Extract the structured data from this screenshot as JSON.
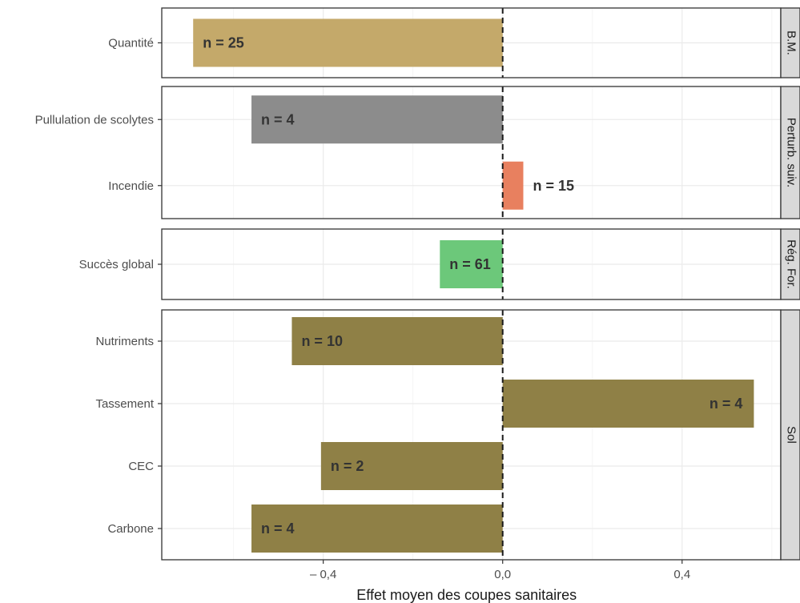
{
  "chart_data": {
    "type": "bar",
    "orientation": "horizontal",
    "xlabel": "Effet moyen des coupes sanitaires",
    "xlim": [
      -0.76,
      0.62
    ],
    "x_ticks": [
      -0.4,
      0.0,
      0.4
    ],
    "x_tick_labels": [
      "– 0,4",
      "0,0",
      "0,4"
    ],
    "reference_line": {
      "x": 0.0,
      "style": "dashed"
    },
    "grid": true,
    "colors": {
      "B.M.": "#c4a96a",
      "pullulation": "#8c8c8c",
      "incendie": "#e8805f",
      "succes": "#6cc87a",
      "Sol": "#8f8046",
      "label": "#333333",
      "panel_border": "#333333",
      "strip_fill": "#d9d9d9",
      "grid_major": "#ebebeb",
      "grid_minor": "#f5f5f5"
    },
    "panels": [
      {
        "strip": "B.M.",
        "bars": [
          {
            "category": "Quantité",
            "value": -0.69,
            "n_label": "n = 25",
            "color": "#c4a96a",
            "label_pos": "start"
          }
        ]
      },
      {
        "strip": "Perturb. suiv.",
        "bars": [
          {
            "category": "Pullulation de scolytes",
            "value": -0.56,
            "n_label": "n = 4",
            "color": "#8c8c8c",
            "label_pos": "start"
          },
          {
            "category": "Incendie",
            "value": 0.046,
            "n_label": "n = 15",
            "color": "#e8805f",
            "label_pos": "outside"
          }
        ]
      },
      {
        "strip": "Rég. For.",
        "bars": [
          {
            "category": "Succès global",
            "value": -0.14,
            "n_label": "n = 61",
            "color": "#6cc87a",
            "label_pos": "start"
          }
        ]
      },
      {
        "strip": "Sol",
        "bars": [
          {
            "category": "Nutriments",
            "value": -0.47,
            "n_label": "n = 10",
            "color": "#8f8046",
            "label_pos": "start"
          },
          {
            "category": "Tassement",
            "value": 0.56,
            "n_label": "n = 4",
            "color": "#8f8046",
            "label_pos": "end"
          },
          {
            "category": "CEC",
            "value": -0.405,
            "n_label": "n = 2",
            "color": "#8f8046",
            "label_pos": "start"
          },
          {
            "category": "Carbone",
            "value": -0.56,
            "n_label": "n = 4",
            "color": "#8f8046",
            "label_pos": "start"
          }
        ]
      }
    ]
  }
}
